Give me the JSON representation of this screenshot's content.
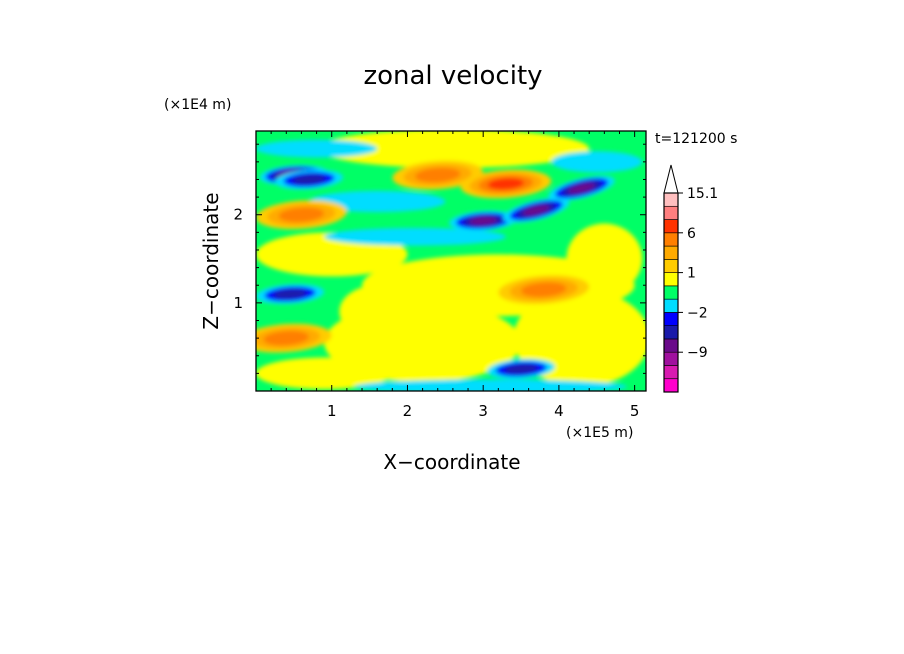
{
  "chart_data": {
    "type": "heatmap",
    "title": "zonal velocity",
    "xlabel": "X−coordinate",
    "ylabel": "Z−coordinate",
    "x_multiplier": "(×1E5 m)",
    "y_multiplier": "(×1E4 m)",
    "time_label": "t=121200 s",
    "xlim": [
      0,
      5.15
    ],
    "ylim": [
      0,
      2.95
    ],
    "x_ticks": [
      "1",
      "2",
      "3",
      "4",
      "5"
    ],
    "y_ticks": [
      "1",
      "2"
    ],
    "grid": false,
    "legend": "colorbar-right",
    "colorbar": {
      "tick_labels": [
        {
          "label": "15.1",
          "level": 15.1
        },
        {
          "label": "6",
          "level": 6
        },
        {
          "label": "1",
          "level": 1
        },
        {
          "label": "−2",
          "level": -2
        },
        {
          "label": "−9",
          "level": -9
        }
      ],
      "levels": [
        -18,
        -14,
        -11,
        -9,
        -7,
        -4,
        -2,
        -1,
        0,
        1,
        2,
        4,
        6,
        9,
        12,
        15.1
      ],
      "colors": [
        "#ff00cc",
        "#d81ab0",
        "#a0109e",
        "#6a0a8a",
        "#1a1aaa",
        "#0000ff",
        "#00ddff",
        "#00ff66",
        "#ffff00",
        "#ffcc00",
        "#ffaa00",
        "#ff7f00",
        "#ff3300",
        "#ff7f7f",
        "#ffbfbf"
      ]
    },
    "features": [
      {
        "x": 0.5,
        "z": 2.45,
        "value": -9,
        "kind": "negative jet"
      },
      {
        "x": 0.7,
        "z": 2.4,
        "value": -5,
        "kind": "negative jet"
      },
      {
        "x": 3.0,
        "z": 1.93,
        "value": -8,
        "kind": "negative jet"
      },
      {
        "x": 3.7,
        "z": 2.05,
        "value": -7,
        "kind": "negative jet"
      },
      {
        "x": 4.3,
        "z": 2.3,
        "value": -8,
        "kind": "negative jet"
      },
      {
        "x": 0.45,
        "z": 1.1,
        "value": -6,
        "kind": "negative jet"
      },
      {
        "x": 3.5,
        "z": 0.25,
        "value": -6,
        "kind": "negative jet"
      },
      {
        "x": 2.4,
        "z": 2.45,
        "value": 5,
        "kind": "positive jet"
      },
      {
        "x": 3.3,
        "z": 2.35,
        "value": 6,
        "kind": "positive jet"
      },
      {
        "x": 0.6,
        "z": 2.0,
        "value": 4,
        "kind": "positive jet"
      },
      {
        "x": 3.8,
        "z": 1.15,
        "value": 4,
        "kind": "positive jet"
      },
      {
        "x": 0.4,
        "z": 0.6,
        "value": 4,
        "kind": "positive jet"
      }
    ]
  }
}
